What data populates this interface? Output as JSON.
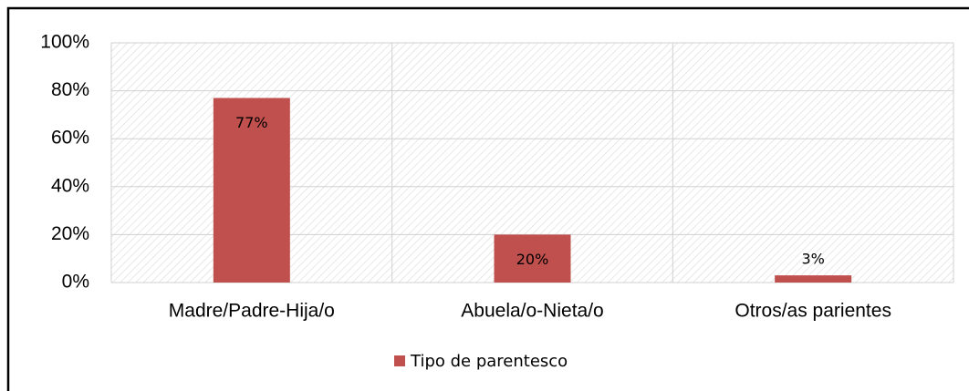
{
  "chart_data": {
    "type": "bar",
    "categories": [
      "Madre/Padre-Hija/o",
      "Abuela/o-Nieta/o",
      "Otros/as parientes"
    ],
    "series": [
      {
        "name": "Tipo de parentesco",
        "color": "#c0504d",
        "values": [
          77,
          20,
          3
        ],
        "value_labels": [
          "77%",
          "20%",
          "3%"
        ]
      }
    ],
    "ylim": [
      0,
      100
    ],
    "yticks": [
      {
        "value": 0,
        "label": "0%"
      },
      {
        "value": 20,
        "label": "20%"
      },
      {
        "value": 40,
        "label": "40%"
      },
      {
        "value": 60,
        "label": "60%"
      },
      {
        "value": 80,
        "label": "80%"
      },
      {
        "value": 100,
        "label": "100%"
      }
    ],
    "grid": true,
    "legend": "bottom"
  }
}
